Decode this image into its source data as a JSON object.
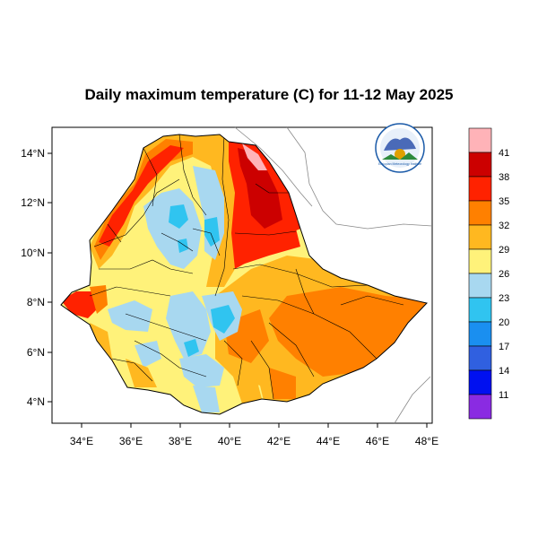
{
  "title": "Daily maximum temperature (C) for 11-12 May 2025",
  "map": {
    "lon_ticks": [
      "34°E",
      "36°E",
      "38°E",
      "40°E",
      "42°E",
      "44°E",
      "46°E",
      "48°E"
    ],
    "lat_ticks": [
      "14°N",
      "12°N",
      "10°N",
      "8°N",
      "6°N",
      "4°N"
    ],
    "lon_range": [
      33,
      48.2
    ],
    "lat_range": [
      3.2,
      15
    ]
  },
  "colorbar": {
    "labels": [
      "41",
      "38",
      "35",
      "32",
      "29",
      "26",
      "23",
      "20",
      "17",
      "14",
      "11"
    ],
    "colors": [
      "#ffb3b8",
      "#cc0000",
      "#ff2200",
      "#ff8000",
      "#ffb820",
      "#fff27a",
      "#a8d8f0",
      "#30c4f0",
      "#1a8ff0",
      "#3060e0",
      "#0010f0",
      "#8a2be2"
    ]
  },
  "logo": {
    "name": "ethiopian-meteorology-institute-logo",
    "text": "Ethiopian Meteorology Institute",
    "colors": [
      "#1a5aa8",
      "#2e8b3c",
      "#e0a000"
    ]
  }
}
